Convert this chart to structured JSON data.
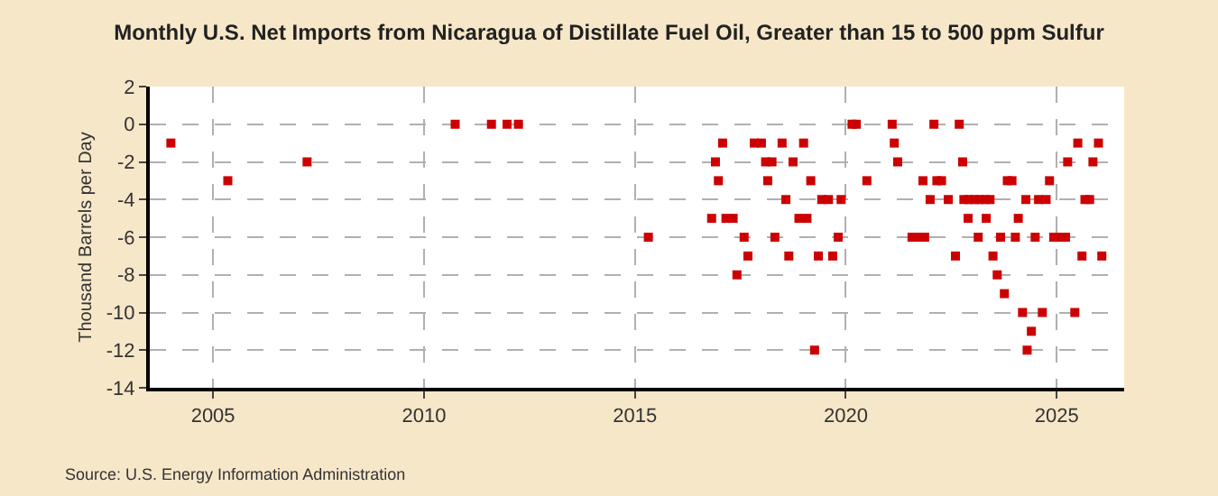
{
  "chart_data": {
    "type": "scatter",
    "title": "Monthly U.S. Net Imports from Nicaragua of Distillate Fuel Oil, Greater than 15 to 500 ppm Sulfur",
    "ylabel": "Thousand Barrels per Day",
    "x": [
      2004.0,
      2005.35,
      2007.23,
      2010.74,
      2011.6,
      2011.97,
      2012.24,
      2015.32,
      2016.82,
      2016.91,
      2016.98,
      2017.08,
      2017.16,
      2017.33,
      2017.42,
      2017.59,
      2017.68,
      2017.83,
      2018.0,
      2018.1,
      2018.15,
      2018.25,
      2018.32,
      2018.49,
      2018.58,
      2018.65,
      2018.75,
      2018.89,
      2019.0,
      2019.08,
      2019.17,
      2019.26,
      2019.35,
      2019.43,
      2019.59,
      2019.69,
      2019.82,
      2019.89,
      2020.15,
      2020.25,
      2020.5,
      2021.1,
      2021.15,
      2021.23,
      2021.57,
      2021.72,
      2021.83,
      2021.87,
      2022.0,
      2022.09,
      2022.16,
      2022.27,
      2022.43,
      2022.6,
      2022.69,
      2022.77,
      2022.8,
      2022.9,
      2022.92,
      2023.05,
      2023.14,
      2023.17,
      2023.3,
      2023.33,
      2023.42,
      2023.49,
      2023.59,
      2023.67,
      2023.76,
      2023.83,
      2023.94,
      2024.02,
      2024.09,
      2024.19,
      2024.27,
      2024.3,
      2024.4,
      2024.49,
      2024.57,
      2024.66,
      2024.75,
      2024.83,
      2024.93,
      2025.07,
      2025.21,
      2025.26,
      2025.43,
      2025.5,
      2025.6,
      2025.67,
      2025.78,
      2025.86,
      2025.99,
      2026.07
    ],
    "series": [
      {
        "color": "#cc0000",
        "values": [
          -1,
          -3,
          -2,
          0,
          0,
          0,
          0,
          -6,
          -5,
          -2,
          -3,
          -1,
          -5,
          -5,
          -8,
          -6,
          -7,
          -1,
          -1,
          -2,
          -3,
          -2,
          -6,
          -1,
          -4,
          -7,
          -2,
          -5,
          -1,
          -5,
          -3,
          -12,
          -7,
          -4,
          -4,
          -7,
          -6,
          -4,
          0,
          0,
          -3,
          0,
          -1,
          -2,
          -6,
          -6,
          -3,
          -6,
          -4,
          0,
          -3,
          -3,
          -4,
          -7,
          0,
          -2,
          -4,
          -5,
          -4,
          -4,
          -6,
          -4,
          -4,
          -5,
          -4,
          -7,
          -8,
          -6,
          -9,
          -3,
          -3,
          -6,
          -5,
          -10,
          -4,
          -12,
          -11,
          -6,
          -4,
          -10,
          -4,
          -3,
          -6,
          -6,
          -6,
          -2,
          -10,
          -1,
          -7,
          -4,
          -4,
          -2,
          -1,
          -7
        ]
      }
    ],
    "xlim": [
      2003.5,
      2026.6
    ],
    "xticks": [
      2005,
      2010,
      2015,
      2020,
      2025
    ],
    "ylim": [
      -14,
      2
    ],
    "yticks": [
      -14,
      -12,
      -10,
      -8,
      -6,
      -4,
      -2,
      0,
      2
    ],
    "grid": true,
    "marker": "square",
    "annotations": [
      "Source: U.S. Energy Information Administration"
    ]
  }
}
